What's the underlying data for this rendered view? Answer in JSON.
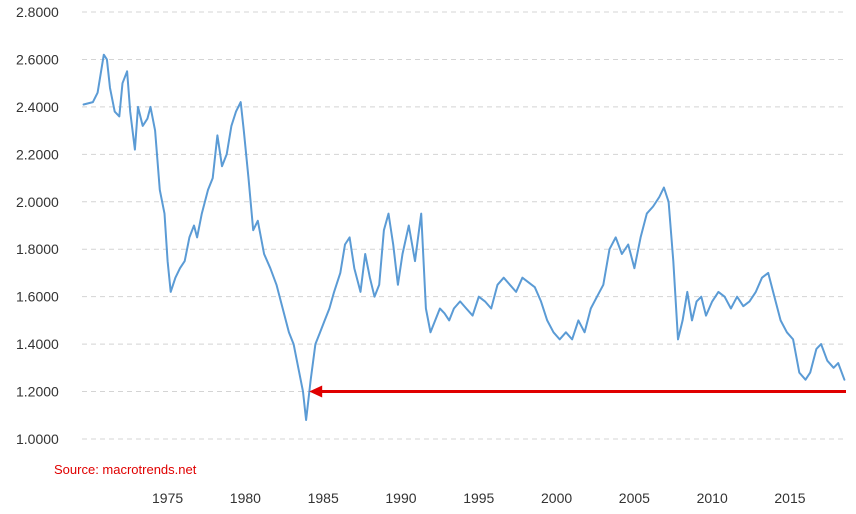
{
  "chart_data": {
    "type": "line",
    "xlim": [
      1969.5,
      2018.6
    ],
    "ylim": [
      1.0,
      2.8
    ],
    "y_ticks": [
      "1.0000",
      "1.2000",
      "1.4000",
      "1.6000",
      "1.8000",
      "2.0000",
      "2.2000",
      "2.4000",
      "2.6000",
      "2.8000"
    ],
    "x_ticks": [
      "1975",
      "1980",
      "1985",
      "1990",
      "1995",
      "2000",
      "2005",
      "2010",
      "2015"
    ],
    "grid": "horizontal-dashed",
    "series": [
      {
        "color": "#5b9bd5",
        "x": [
          1969.6,
          1970.2,
          1970.5,
          1970.9,
          1971.1,
          1971.3,
          1971.6,
          1971.9,
          1972.1,
          1972.4,
          1972.6,
          1972.9,
          1973.1,
          1973.4,
          1973.7,
          1973.9,
          1974.2,
          1974.5,
          1974.8,
          1975.0,
          1975.2,
          1975.5,
          1975.8,
          1976.1,
          1976.4,
          1976.7,
          1976.9,
          1977.2,
          1977.6,
          1977.9,
          1978.2,
          1978.5,
          1978.8,
          1979.1,
          1979.4,
          1979.7,
          1979.9,
          1980.2,
          1980.5,
          1980.8,
          1981.2,
          1981.6,
          1982.0,
          1982.4,
          1982.8,
          1983.1,
          1983.4,
          1983.7,
          1983.9,
          1984.2,
          1984.5,
          1984.8,
          1985.1,
          1985.4,
          1985.7,
          1986.1,
          1986.4,
          1986.7,
          1987.0,
          1987.4,
          1987.7,
          1988.0,
          1988.3,
          1988.6,
          1988.9,
          1989.2,
          1989.5,
          1989.8,
          1990.1,
          1990.5,
          1990.9,
          1991.3,
          1991.6,
          1991.9,
          1992.2,
          1992.5,
          1992.8,
          1993.1,
          1993.4,
          1993.8,
          1994.2,
          1994.6,
          1995.0,
          1995.4,
          1995.8,
          1996.2,
          1996.6,
          1997.0,
          1997.4,
          1997.8,
          1998.2,
          1998.6,
          1999.0,
          1999.4,
          1999.8,
          2000.2,
          2000.6,
          2001.0,
          2001.4,
          2001.8,
          2002.2,
          2002.6,
          2003.0,
          2003.4,
          2003.8,
          2004.2,
          2004.6,
          2005.0,
          2005.4,
          2005.8,
          2006.2,
          2006.6,
          2006.9,
          2007.2,
          2007.5,
          2007.8,
          2008.1,
          2008.4,
          2008.7,
          2009.0,
          2009.3,
          2009.6,
          2010.0,
          2010.4,
          2010.8,
          2011.2,
          2011.6,
          2012.0,
          2012.4,
          2012.8,
          2013.2,
          2013.6,
          2014.0,
          2014.4,
          2014.8,
          2015.2,
          2015.6,
          2016.0,
          2016.3,
          2016.7,
          2017.0,
          2017.4,
          2017.8,
          2018.1,
          2018.5
        ],
        "y": [
          2.41,
          2.42,
          2.46,
          2.62,
          2.6,
          2.48,
          2.38,
          2.36,
          2.5,
          2.55,
          2.38,
          2.22,
          2.4,
          2.32,
          2.35,
          2.4,
          2.3,
          2.05,
          1.95,
          1.75,
          1.62,
          1.68,
          1.72,
          1.75,
          1.85,
          1.9,
          1.85,
          1.95,
          2.05,
          2.1,
          2.28,
          2.15,
          2.2,
          2.32,
          2.38,
          2.42,
          2.3,
          2.1,
          1.88,
          1.92,
          1.78,
          1.72,
          1.65,
          1.55,
          1.45,
          1.4,
          1.3,
          1.2,
          1.08,
          1.25,
          1.4,
          1.45,
          1.5,
          1.55,
          1.62,
          1.7,
          1.82,
          1.85,
          1.72,
          1.62,
          1.78,
          1.68,
          1.6,
          1.65,
          1.88,
          1.95,
          1.82,
          1.65,
          1.78,
          1.9,
          1.75,
          1.95,
          1.55,
          1.45,
          1.5,
          1.55,
          1.53,
          1.5,
          1.55,
          1.58,
          1.55,
          1.52,
          1.6,
          1.58,
          1.55,
          1.65,
          1.68,
          1.65,
          1.62,
          1.68,
          1.66,
          1.64,
          1.58,
          1.5,
          1.45,
          1.42,
          1.45,
          1.42,
          1.5,
          1.45,
          1.55,
          1.6,
          1.65,
          1.8,
          1.85,
          1.78,
          1.82,
          1.72,
          1.85,
          1.95,
          1.98,
          2.02,
          2.06,
          2.0,
          1.75,
          1.42,
          1.5,
          1.62,
          1.5,
          1.58,
          1.6,
          1.52,
          1.58,
          1.62,
          1.6,
          1.55,
          1.6,
          1.56,
          1.58,
          1.62,
          1.68,
          1.7,
          1.6,
          1.5,
          1.45,
          1.42,
          1.28,
          1.25,
          1.28,
          1.38,
          1.4,
          1.33,
          1.3,
          1.32,
          1.25
        ]
      }
    ],
    "annotation": {
      "type": "horizontal-arrow",
      "y": 1.2,
      "x_from": 2018.6,
      "x_to": 1984.1,
      "color": "#e00000"
    },
    "source_text": "Source: macrotrends.net"
  }
}
